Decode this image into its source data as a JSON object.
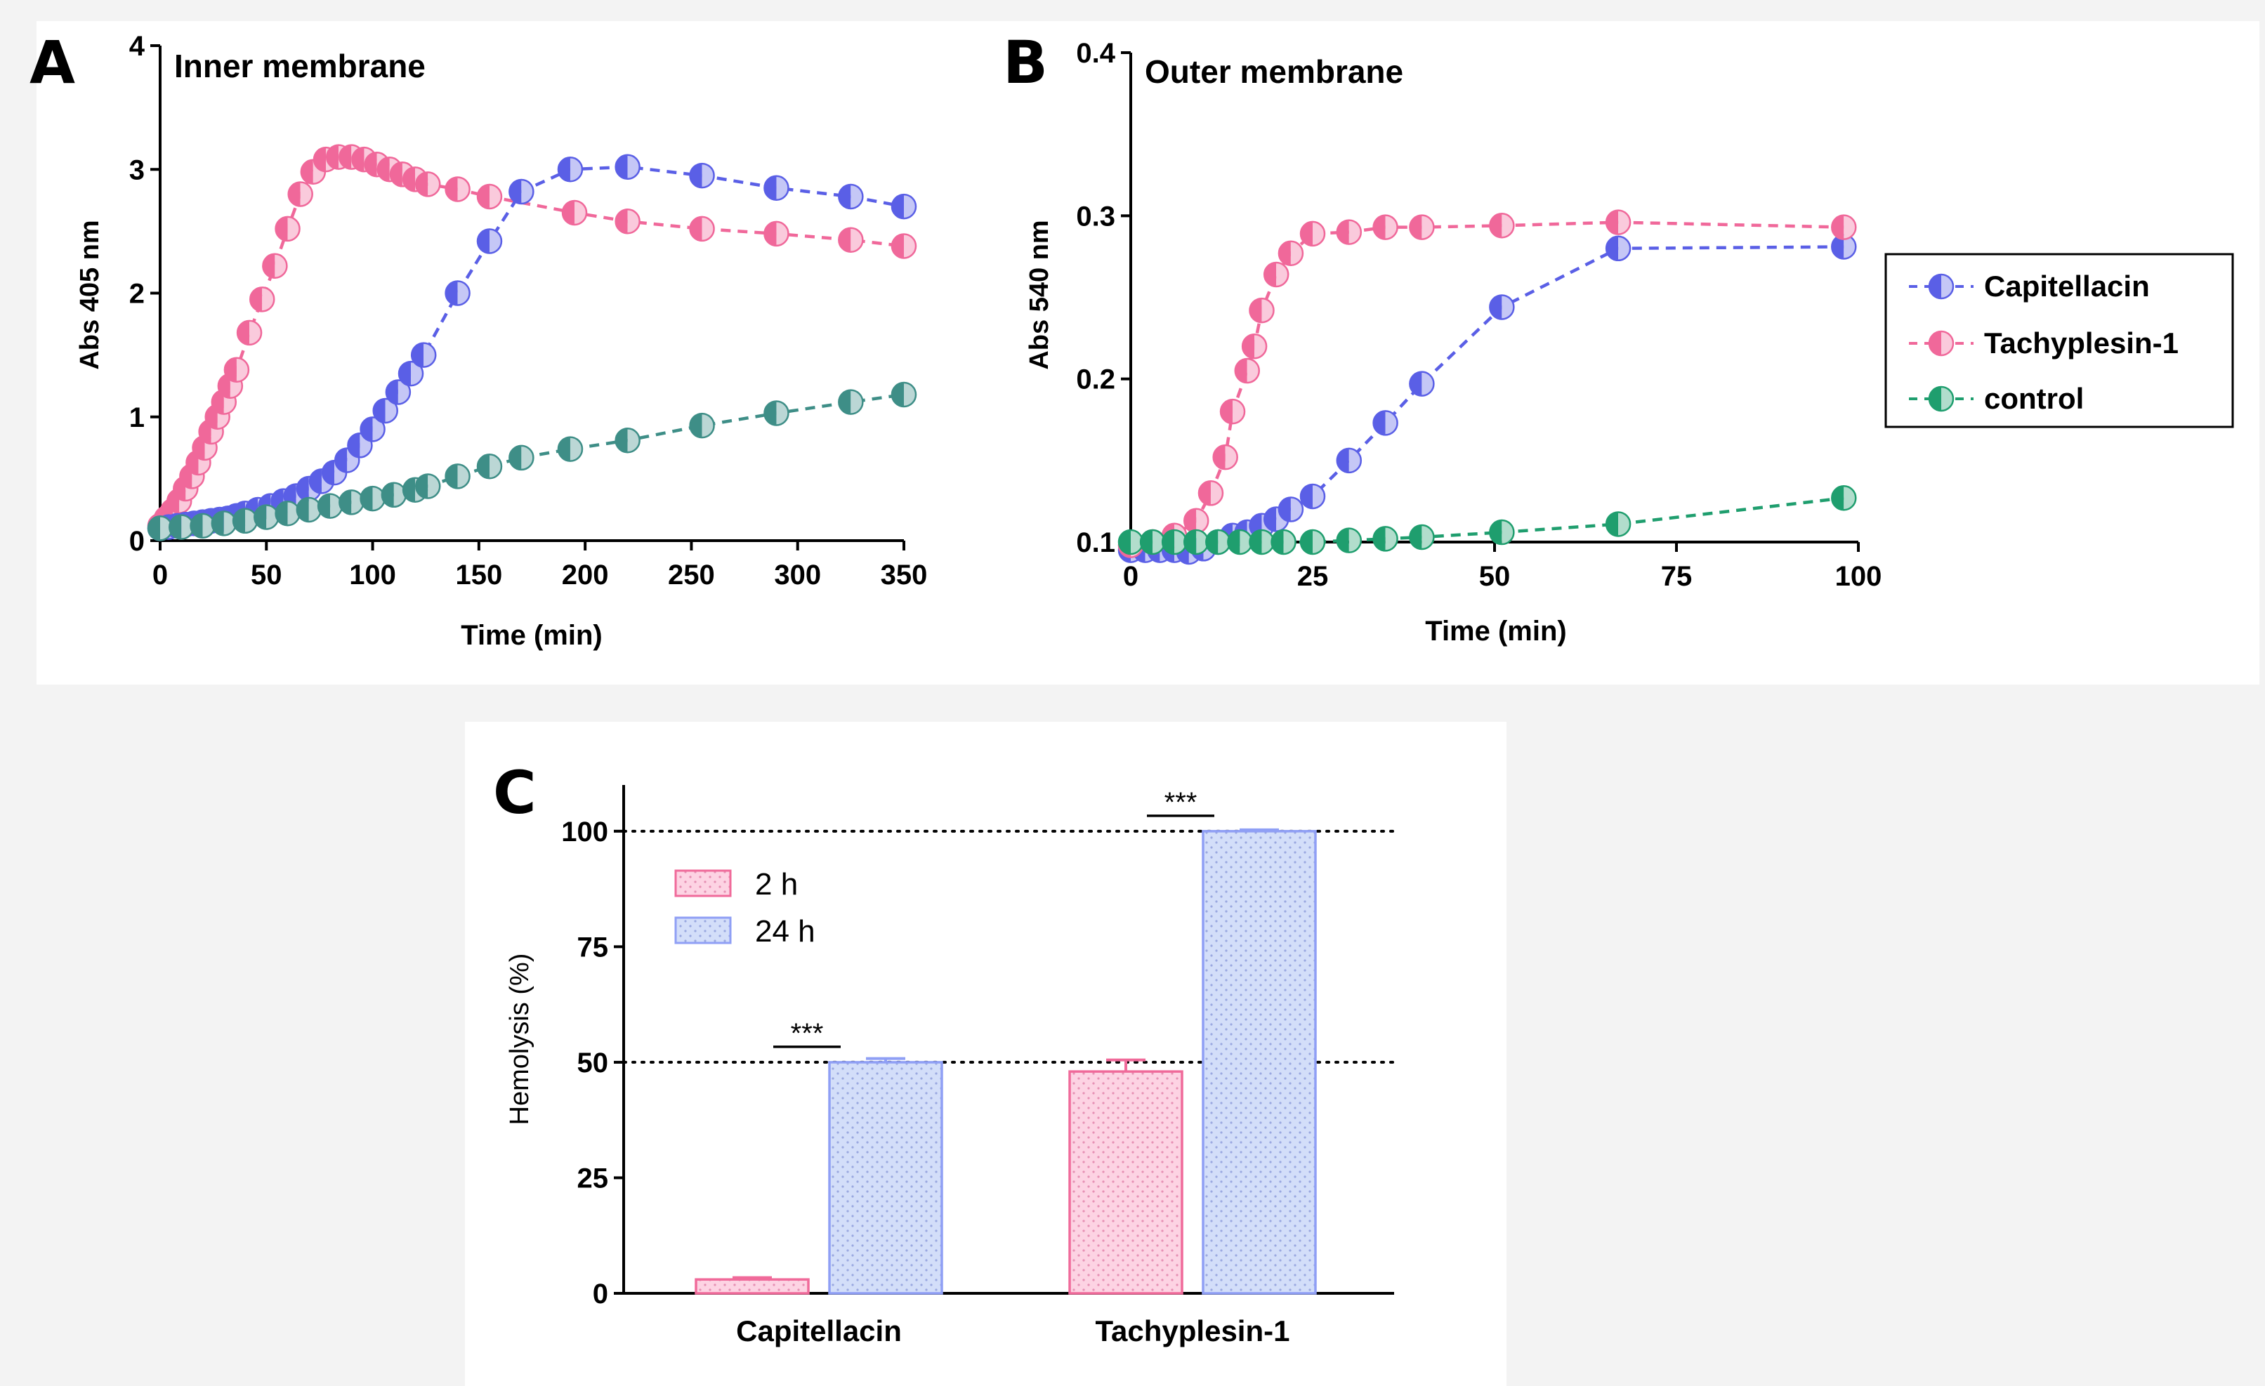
{
  "chart_data": [
    {
      "panel": "A",
      "type": "line",
      "title": "Inner membrane",
      "xlabel": "Time (min)",
      "ylabel": "Abs 405 nm",
      "xlim": [
        0,
        350
      ],
      "ylim": [
        0,
        4
      ],
      "xticks": [
        0,
        50,
        100,
        150,
        200,
        250,
        300,
        350
      ],
      "yticks": [
        0,
        1,
        2,
        3,
        4
      ],
      "series": [
        {
          "name": "Tachyplesin-1",
          "color": "#f0689a",
          "x": [
            0,
            3,
            6,
            9,
            12,
            15,
            18,
            21,
            24,
            27,
            30,
            33,
            36,
            42,
            48,
            54,
            60,
            66,
            72,
            78,
            84,
            90,
            96,
            102,
            108,
            114,
            120,
            126,
            140,
            155,
            195,
            220,
            255,
            290,
            325,
            350
          ],
          "y": [
            0.12,
            0.18,
            0.24,
            0.32,
            0.42,
            0.52,
            0.63,
            0.75,
            0.88,
            1.0,
            1.12,
            1.25,
            1.38,
            1.68,
            1.95,
            2.22,
            2.52,
            2.8,
            2.98,
            3.08,
            3.1,
            3.1,
            3.08,
            3.04,
            3.0,
            2.96,
            2.92,
            2.88,
            2.84,
            2.78,
            2.65,
            2.58,
            2.52,
            2.48,
            2.43,
            2.38
          ]
        },
        {
          "name": "Capitellacin",
          "color": "#5a5fe6",
          "x": [
            0,
            4,
            8,
            12,
            16,
            20,
            24,
            28,
            32,
            36,
            40,
            46,
            52,
            58,
            64,
            70,
            76,
            82,
            88,
            94,
            100,
            106,
            112,
            118,
            124,
            140,
            155,
            170,
            193,
            220,
            255,
            290,
            325,
            350
          ],
          "y": [
            0.1,
            0.11,
            0.12,
            0.13,
            0.14,
            0.15,
            0.16,
            0.17,
            0.18,
            0.2,
            0.22,
            0.25,
            0.28,
            0.32,
            0.36,
            0.42,
            0.48,
            0.55,
            0.65,
            0.77,
            0.9,
            1.05,
            1.2,
            1.35,
            1.5,
            2.0,
            2.42,
            2.82,
            3.0,
            3.02,
            2.95,
            2.85,
            2.78,
            2.7
          ]
        },
        {
          "name": "control",
          "color": "#3e8e87",
          "x": [
            0,
            10,
            20,
            30,
            40,
            50,
            60,
            70,
            80,
            90,
            100,
            110,
            120,
            126,
            140,
            155,
            170,
            193,
            220,
            255,
            290,
            325,
            350
          ],
          "y": [
            0.1,
            0.11,
            0.12,
            0.14,
            0.16,
            0.19,
            0.22,
            0.25,
            0.28,
            0.31,
            0.34,
            0.37,
            0.41,
            0.44,
            0.52,
            0.6,
            0.67,
            0.74,
            0.81,
            0.93,
            1.03,
            1.12,
            1.18
          ]
        }
      ]
    },
    {
      "panel": "B",
      "type": "line",
      "title": "Outer membrane",
      "xlabel": "Time (min)",
      "ylabel": "Abs 540 nm",
      "xlim": [
        0,
        100
      ],
      "ylim": [
        0.1,
        0.4
      ],
      "xticks": [
        0,
        25,
        50,
        75,
        100
      ],
      "yticks": [
        0.1,
        0.2,
        0.3,
        0.4
      ],
      "series": [
        {
          "name": "Capitellacin",
          "color": "#5a5fe6",
          "x": [
            0,
            2,
            4,
            6,
            8,
            10,
            12,
            14,
            16,
            18,
            20,
            22,
            25,
            30,
            35,
            40,
            51,
            67,
            98
          ],
          "y": [
            0.095,
            0.095,
            0.095,
            0.095,
            0.094,
            0.096,
            0.1,
            0.104,
            0.106,
            0.11,
            0.114,
            0.12,
            0.128,
            0.15,
            0.173,
            0.197,
            0.244,
            0.28,
            0.281
          ]
        },
        {
          "name": "Tachyplesin-1",
          "color": "#f0689a",
          "x": [
            0,
            3,
            6,
            9,
            11,
            13,
            14,
            16,
            17,
            18,
            20,
            22,
            25,
            30,
            35,
            40,
            51,
            67,
            98
          ],
          "y": [
            0.098,
            0.1,
            0.104,
            0.113,
            0.13,
            0.152,
            0.18,
            0.205,
            0.22,
            0.242,
            0.264,
            0.277,
            0.289,
            0.29,
            0.293,
            0.293,
            0.294,
            0.296,
            0.293
          ]
        },
        {
          "name": "control",
          "color": "#1f9e6e",
          "x": [
            0,
            3,
            6,
            9,
            12,
            15,
            18,
            21,
            25,
            30,
            35,
            40,
            51,
            67,
            98
          ],
          "y": [
            0.1,
            0.1,
            0.1,
            0.1,
            0.1,
            0.1,
            0.1,
            0.1,
            0.1,
            0.101,
            0.102,
            0.103,
            0.106,
            0.111,
            0.127
          ]
        }
      ],
      "legend": {
        "placement": "right",
        "entries": [
          "Capitellacin",
          "Tachyplesin-1",
          "control"
        ]
      }
    },
    {
      "panel": "C",
      "type": "bar",
      "title": "",
      "xlabel": "",
      "ylabel": "Hemolysis (%)",
      "ylim": [
        0,
        110
      ],
      "yticks": [
        0,
        25,
        50,
        75,
        100
      ],
      "categories": [
        "Capitellacin",
        "Tachyplesin-1"
      ],
      "series": [
        {
          "name": "2 h",
          "color": "#f06a9a",
          "fill": "#fdd3e3",
          "values": [
            3,
            48
          ],
          "errors": [
            0.4,
            2.5
          ]
        },
        {
          "name": "24 h",
          "color": "#8f9ff5",
          "fill": "#d3def9",
          "values": [
            50,
            100
          ],
          "errors": [
            0.8,
            0.3
          ]
        }
      ],
      "reference_lines": [
        50,
        100
      ],
      "significance": [
        "***",
        "***"
      ],
      "legend": {
        "placement": "top-left",
        "entries": [
          "2 h",
          "24 h"
        ]
      }
    }
  ],
  "panel_letters": [
    "A",
    "B",
    "C"
  ]
}
